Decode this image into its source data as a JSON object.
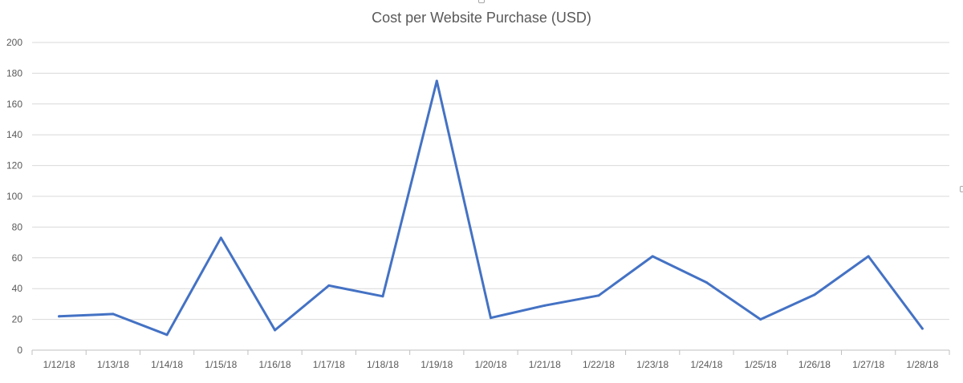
{
  "chart_data": {
    "type": "line",
    "title": "Cost per Website Purchase (USD)",
    "categories": [
      "1/12/18",
      "1/13/18",
      "1/14/18",
      "1/15/18",
      "1/16/18",
      "1/17/18",
      "1/18/18",
      "1/19/18",
      "1/20/18",
      "1/21/18",
      "1/22/18",
      "1/23/18",
      "1/24/18",
      "1/25/18",
      "1/26/18",
      "1/27/18",
      "1/28/18"
    ],
    "series": [
      {
        "values": [
          22,
          23.5,
          10,
          73,
          13,
          42,
          35,
          175,
          21,
          29,
          35.5,
          61,
          44,
          20,
          36,
          61,
          14
        ]
      }
    ],
    "ylim": [
      0,
      200
    ],
    "yticks": [
      "0",
      "20",
      "40",
      "60",
      "80",
      "100",
      "120",
      "140",
      "160",
      "180",
      "200"
    ],
    "xlabel": "",
    "ylabel": "",
    "grid": true,
    "legend": "none",
    "colors": {
      "line": "#4472c4",
      "grid": "#d9d9d9",
      "text": "#595959",
      "axis": "#bfbfbf"
    }
  }
}
